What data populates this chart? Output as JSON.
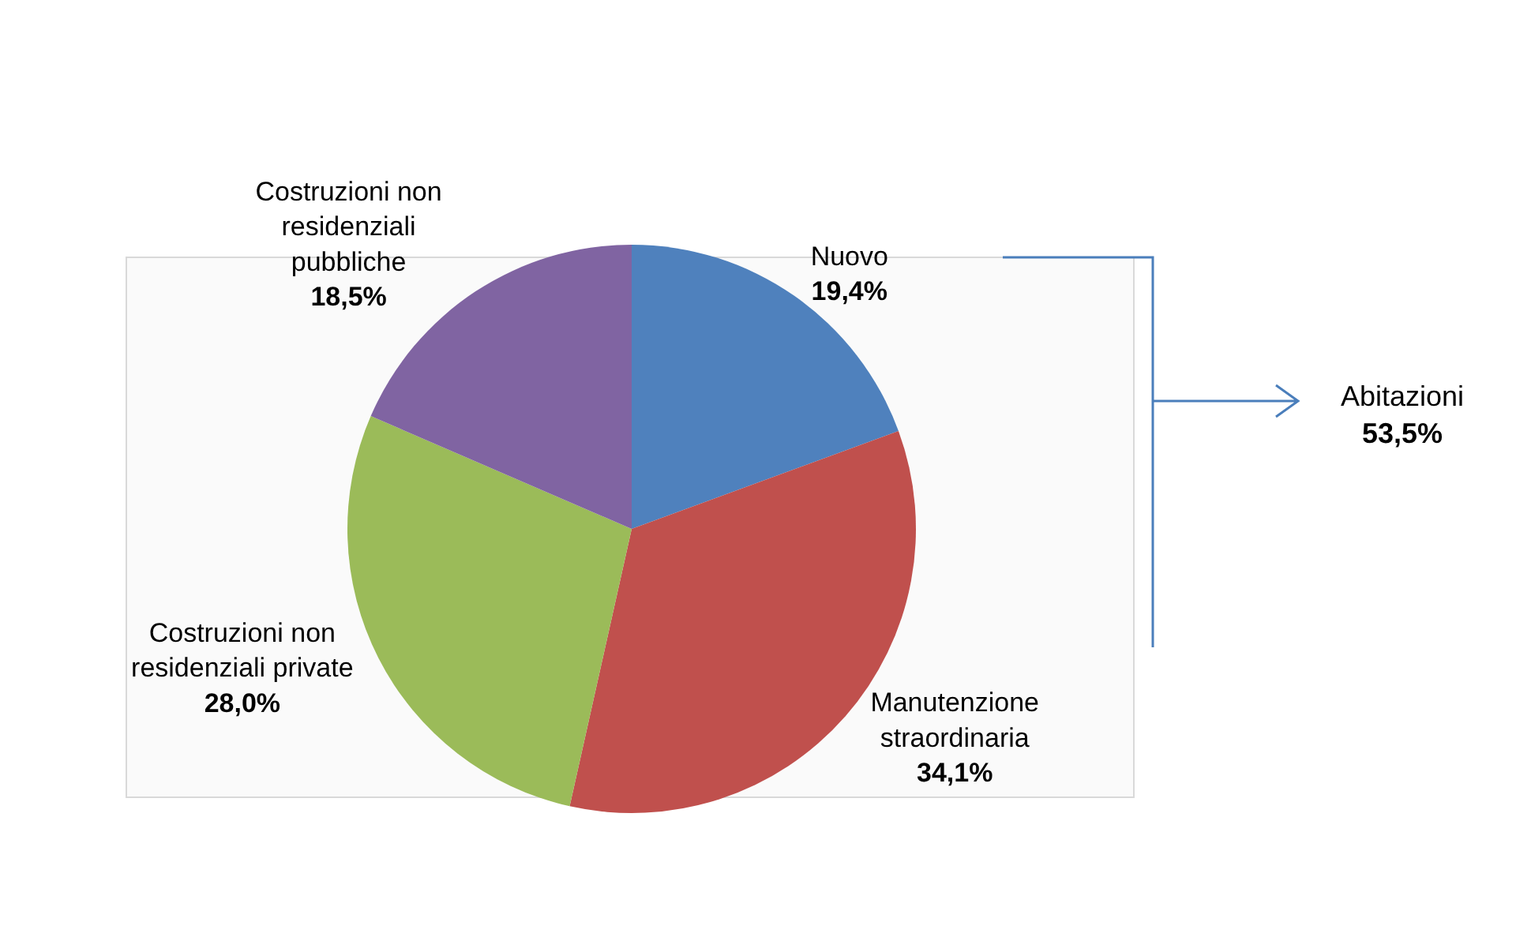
{
  "chart_data": {
    "type": "pie",
    "categories": [
      "Nuovo",
      "Manutenzione straordinaria",
      "Costruzioni non residenziali private",
      "Costruzioni non residenziali pubbliche"
    ],
    "values": [
      19.4,
      34.1,
      28.0,
      18.5
    ],
    "colors": [
      "#4f81bd",
      "#c0504d",
      "#9bbb59",
      "#8064a2"
    ],
    "value_labels": [
      "19,4%",
      "34,1%",
      "28,0%",
      "18,5%"
    ],
    "annotations": [
      "Abitazioni\n53,5%"
    ],
    "legend": false
  }
}
